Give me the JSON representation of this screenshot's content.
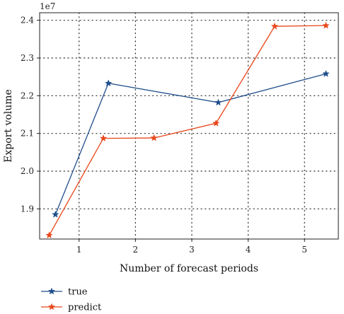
{
  "chart_data": {
    "type": "line",
    "exponent_label": "1e7",
    "xlabel": "Number of forecast periods",
    "ylabel": "Export volume",
    "xlim": [
      0.3,
      5.6
    ],
    "ylim": [
      1.82,
      2.42
    ],
    "x_ticks": [
      1,
      2,
      3,
      4,
      5
    ],
    "y_ticks": [
      1.9,
      2.0,
      2.1,
      2.2,
      2.3,
      2.4
    ],
    "y_tick_labels": [
      "1.9",
      "2.0",
      "2.1",
      "2.2",
      "2.3",
      "2.4"
    ],
    "grid": true,
    "legend_placement": "bottom-left, below plot",
    "series": [
      {
        "name": "true",
        "color": "#1f4e8c",
        "marker": "star",
        "x": [
          0.58,
          1.52,
          3.47,
          5.38
        ],
        "y": [
          1.885,
          2.233,
          2.182,
          2.258
        ]
      },
      {
        "name": "predict",
        "color": "#e8471b",
        "marker": "star",
        "x": [
          0.47,
          1.43,
          2.33,
          3.43,
          4.47,
          5.38
        ],
        "y": [
          1.83,
          2.087,
          2.088,
          2.127,
          2.384,
          2.386
        ]
      }
    ]
  }
}
